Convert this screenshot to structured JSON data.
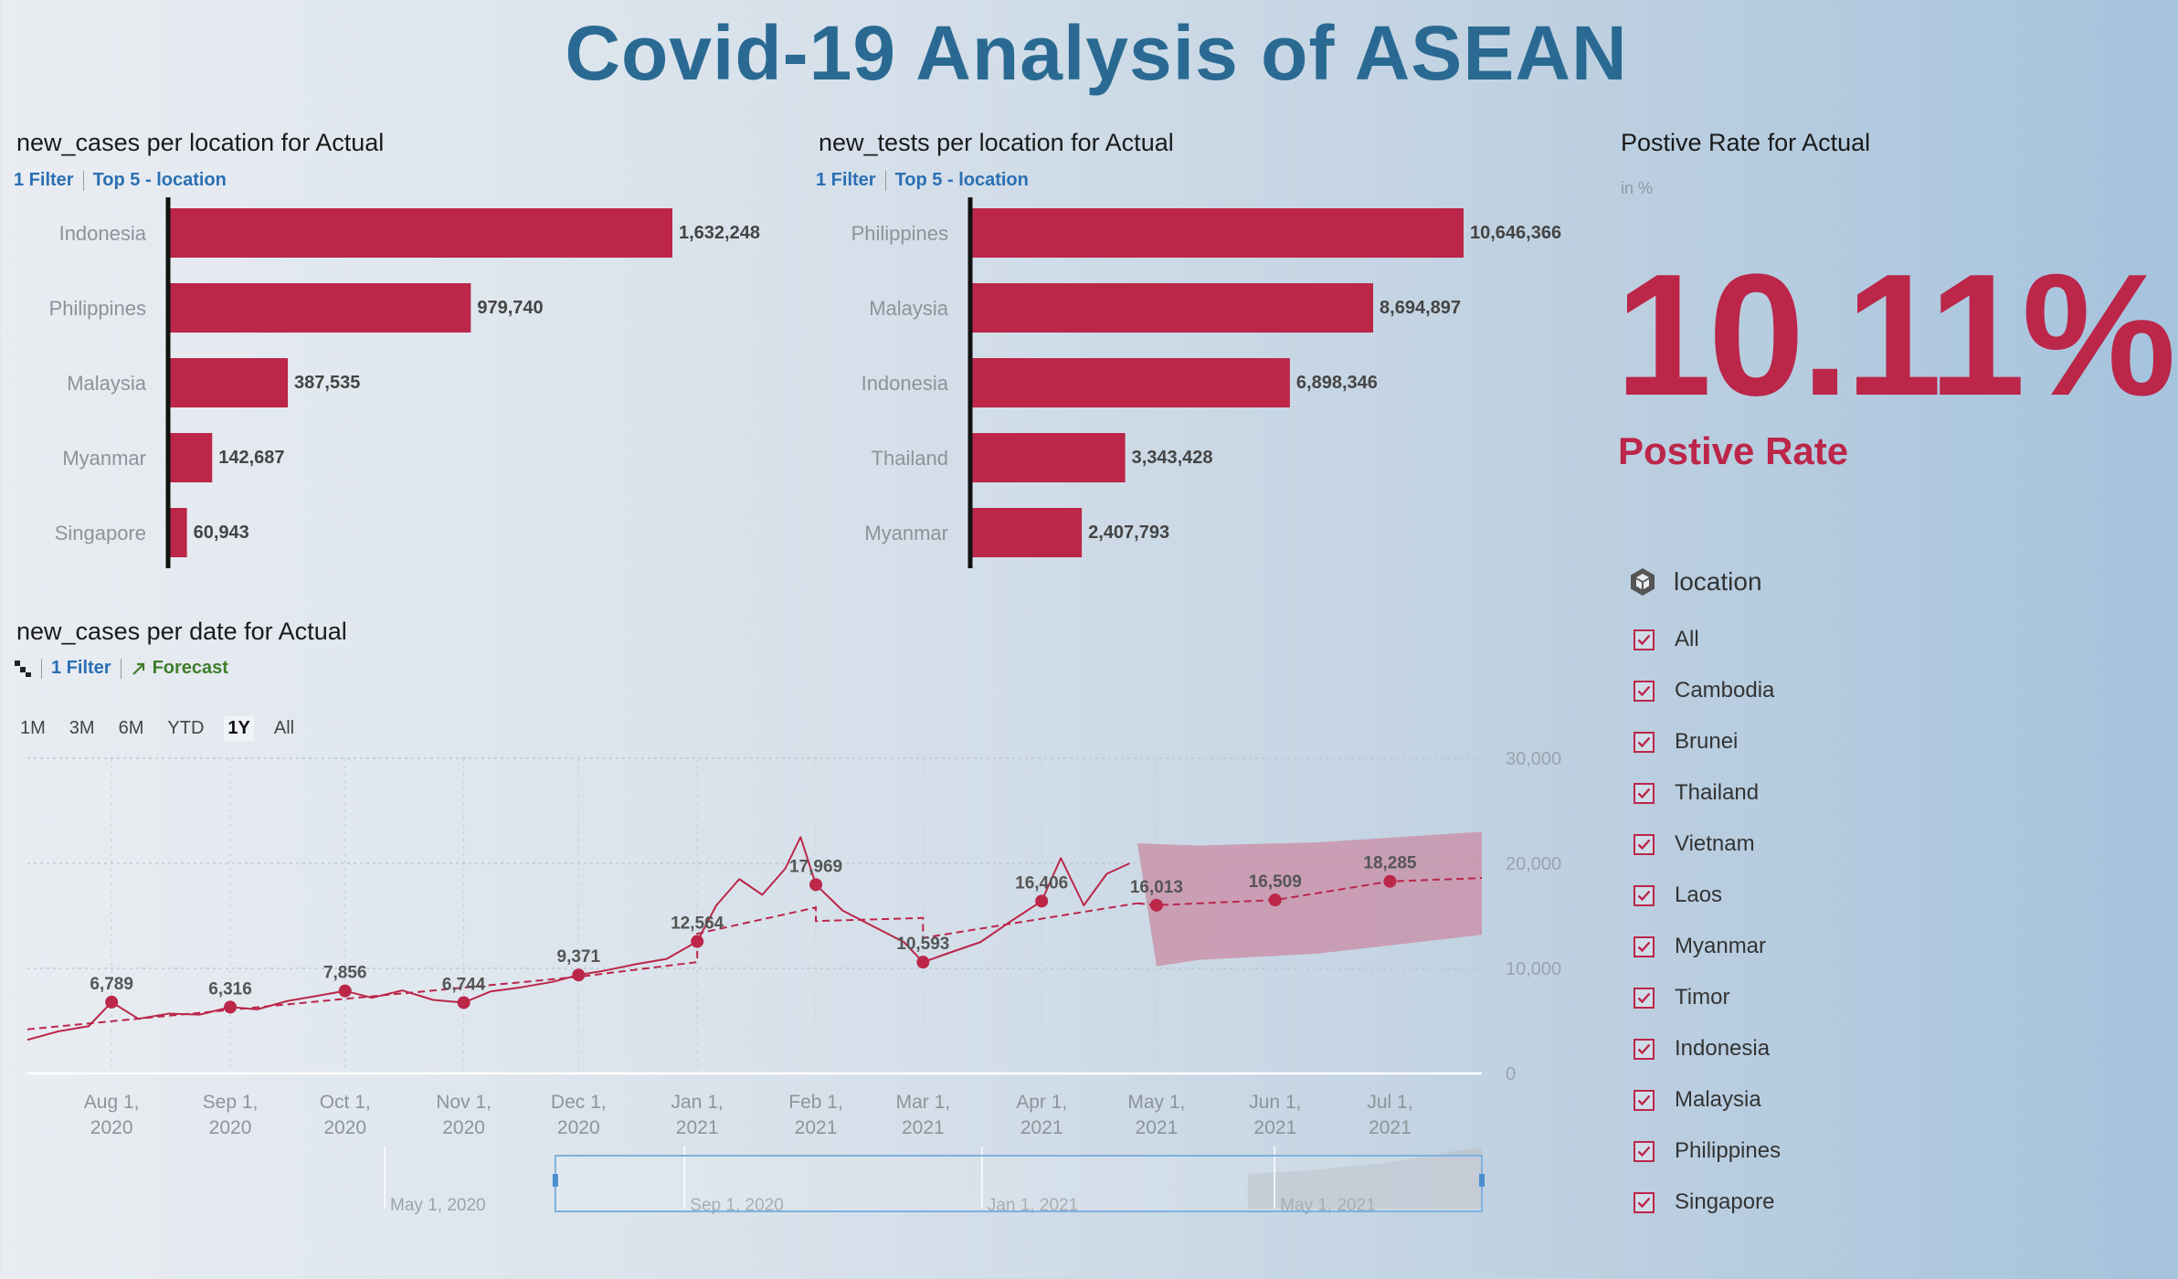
{
  "title": "Covid-19 Analysis of ASEAN",
  "colors": {
    "accent": "#bb2649",
    "title": "#2a6a92",
    "link": "#2b6fb3",
    "forecast": "#3f7d2a",
    "forecast_band": "#c990a8"
  },
  "panels": {
    "cases_by_location": {
      "title": "new_cases per location for Actual",
      "filter": "1 Filter",
      "ranking": "Top 5 - location"
    },
    "tests_by_location": {
      "title": "new_tests per location for Actual",
      "filter": "1 Filter",
      "ranking": "Top 5 - location"
    },
    "positive_rate": {
      "title": "Postive Rate for Actual",
      "unit": "in %",
      "value": "10.11%",
      "label": "Postive Rate"
    },
    "cases_by_date": {
      "title": "new_cases per date for Actual",
      "filter": "1 Filter",
      "forecast": "Forecast",
      "hierarchy_icon": "hierarchy-icon",
      "forecast_icon": "trend-arrow-icon"
    }
  },
  "time_range": {
    "options": [
      "1M",
      "3M",
      "6M",
      "YTD",
      "1Y",
      "All"
    ],
    "active": "1Y"
  },
  "location_filter": {
    "title": "location",
    "icon": "dimension-cube-icon",
    "items": [
      "All",
      "Cambodia",
      "Brunei",
      "Thailand",
      "Vietnam",
      "Laos",
      "Myanmar",
      "Timor",
      "Indonesia",
      "Malaysia",
      "Philippines",
      "Singapore"
    ],
    "checked": true
  },
  "chart_data": [
    {
      "type": "bar",
      "orientation": "horizontal",
      "title": "new_cases per location for Actual",
      "categories": [
        "Indonesia",
        "Philippines",
        "Malaysia",
        "Myanmar",
        "Singapore"
      ],
      "values": [
        1632248,
        979740,
        387535,
        142687,
        60943
      ],
      "value_labels": [
        "1,632,248",
        "979,740",
        "387,535",
        "142,687",
        "60,943"
      ]
    },
    {
      "type": "bar",
      "orientation": "horizontal",
      "title": "new_tests per location for Actual",
      "categories": [
        "Philippines",
        "Malaysia",
        "Indonesia",
        "Thailand",
        "Myanmar"
      ],
      "values": [
        10646366,
        8694897,
        6898346,
        3343428,
        2407793
      ],
      "value_labels": [
        "10,646,366",
        "8,694,897",
        "6,898,346",
        "3,343,428",
        "2,407,793"
      ]
    },
    {
      "type": "line",
      "title": "new_cases per date for Actual",
      "x_ticks": [
        "2020-08-01",
        "2020-09-01",
        "2020-10-01",
        "2020-11-01",
        "2020-12-01",
        "2021-01-01",
        "2021-02-01",
        "2021-03-01",
        "2021-04-01",
        "2021-05-01",
        "2021-06-01",
        "2021-07-01"
      ],
      "x_tick_labels": [
        [
          "Aug 1,",
          "2020"
        ],
        [
          "Sep 1,",
          "2020"
        ],
        [
          "Oct 1,",
          "2020"
        ],
        [
          "Nov 1,",
          "2020"
        ],
        [
          "Dec 1,",
          "2020"
        ],
        [
          "Jan 1,",
          "2021"
        ],
        [
          "Feb 1,",
          "2021"
        ],
        [
          "Mar 1,",
          "2021"
        ],
        [
          "Apr 1,",
          "2021"
        ],
        [
          "May 1,",
          "2021"
        ],
        [
          "Jun 1,",
          "2021"
        ],
        [
          "Jul 1,",
          "2021"
        ]
      ],
      "xlim": [
        "2020-07-10",
        "2021-07-25"
      ],
      "ylim": [
        0,
        30000
      ],
      "y_ticks": [
        0,
        10000,
        20000,
        30000
      ],
      "y_tick_labels": [
        "0",
        "10,000",
        "20,000",
        "30,000"
      ],
      "grid": true,
      "series": [
        {
          "role": "actual",
          "points": [
            [
              "2020-07-10",
              3200
            ],
            [
              "2020-07-18",
              4000
            ],
            [
              "2020-07-26",
              4500
            ],
            [
              "2020-08-01",
              6789
            ],
            [
              "2020-08-08",
              5200
            ],
            [
              "2020-08-16",
              5700
            ],
            [
              "2020-08-24",
              5600
            ],
            [
              "2020-09-01",
              6316
            ],
            [
              "2020-09-08",
              6100
            ],
            [
              "2020-09-16",
              6900
            ],
            [
              "2020-09-24",
              7400
            ],
            [
              "2020-10-01",
              7856
            ],
            [
              "2020-10-08",
              7200
            ],
            [
              "2020-10-16",
              7900
            ],
            [
              "2020-10-24",
              7000
            ],
            [
              "2020-11-01",
              6744
            ],
            [
              "2020-11-08",
              7800
            ],
            [
              "2020-11-16",
              8200
            ],
            [
              "2020-11-24",
              8700
            ],
            [
              "2020-12-01",
              9371
            ],
            [
              "2020-12-08",
              9800
            ],
            [
              "2020-12-16",
              10400
            ],
            [
              "2020-12-24",
              10900
            ],
            [
              "2021-01-01",
              12564
            ],
            [
              "2021-01-06",
              16000
            ],
            [
              "2021-01-12",
              18500
            ],
            [
              "2021-01-18",
              17000
            ],
            [
              "2021-01-24",
              19500
            ],
            [
              "2021-01-28",
              22500
            ],
            [
              "2021-02-01",
              17969
            ],
            [
              "2021-02-08",
              15500
            ],
            [
              "2021-02-16",
              14000
            ],
            [
              "2021-02-24",
              12500
            ],
            [
              "2021-03-01",
              10593
            ],
            [
              "2021-03-08",
              11500
            ],
            [
              "2021-03-16",
              12500
            ],
            [
              "2021-03-24",
              14500
            ],
            [
              "2021-04-01",
              16406
            ],
            [
              "2021-04-06",
              20500
            ],
            [
              "2021-04-12",
              16000
            ],
            [
              "2021-04-18",
              19000
            ],
            [
              "2021-04-24",
              20000
            ]
          ]
        },
        {
          "role": "trend",
          "style": "dashed",
          "points": [
            [
              "2020-07-10",
              4200
            ],
            [
              "2020-10-01",
              7100
            ],
            [
              "2020-12-01",
              9200
            ],
            [
              "2021-01-01",
              10600
            ],
            [
              "2021-01-01",
              13300
            ],
            [
              "2021-02-01",
              15800
            ],
            [
              "2021-02-01",
              14500
            ],
            [
              "2021-03-01",
              14800
            ],
            [
              "2021-03-01",
              12900
            ],
            [
              "2021-04-26",
              16200
            ]
          ]
        },
        {
          "role": "forecast",
          "style": "dashed",
          "points": [
            [
              "2021-04-26",
              16200
            ],
            [
              "2021-05-01",
              16013
            ],
            [
              "2021-06-01",
              16509
            ],
            [
              "2021-07-01",
              18285
            ],
            [
              "2021-07-25",
              18600
            ]
          ]
        },
        {
          "role": "forecast_interval",
          "upper": [
            [
              "2021-04-26",
              21900
            ],
            [
              "2021-05-12",
              21700
            ],
            [
              "2021-06-12",
              22000
            ],
            [
              "2021-07-25",
              23000
            ]
          ],
          "lower": [
            [
              "2021-05-01",
              10200
            ],
            [
              "2021-05-12",
              10800
            ],
            [
              "2021-06-12",
              11400
            ],
            [
              "2021-07-25",
              13200
            ]
          ]
        }
      ],
      "data_labels": [
        {
          "x": "2020-08-01",
          "y": 6789,
          "label": "6,789"
        },
        {
          "x": "2020-09-01",
          "y": 6316,
          "label": "6,316"
        },
        {
          "x": "2020-10-01",
          "y": 7856,
          "label": "7,856"
        },
        {
          "x": "2020-11-01",
          "y": 6744,
          "label": "6,744"
        },
        {
          "x": "2020-12-01",
          "y": 9371,
          "label": "9,371"
        },
        {
          "x": "2021-01-01",
          "y": 12564,
          "label": "12,564"
        },
        {
          "x": "2021-02-01",
          "y": 17969,
          "label": "17,969"
        },
        {
          "x": "2021-03-01",
          "y": 10593,
          "label": "10,593"
        },
        {
          "x": "2021-04-01",
          "y": 16406,
          "label": "16,406"
        },
        {
          "x": "2021-05-01",
          "y": 16013,
          "label": "16,013"
        },
        {
          "x": "2021-06-01",
          "y": 16509,
          "label": "16,509"
        },
        {
          "x": "2021-07-01",
          "y": 18285,
          "label": "18,285"
        }
      ],
      "navigator": {
        "labels": [
          [
            "2020-05-01",
            "May 1, 2020"
          ],
          [
            "2020-09-01",
            "Sep 1, 2020"
          ],
          [
            "2021-01-01",
            "Jan 1, 2021"
          ],
          [
            "2021-05-01",
            "May 1, 2021"
          ]
        ],
        "range": [
          "2020-04-10",
          "2021-07-25"
        ],
        "selection": [
          "2020-07-10",
          "2021-07-25"
        ]
      }
    }
  ]
}
